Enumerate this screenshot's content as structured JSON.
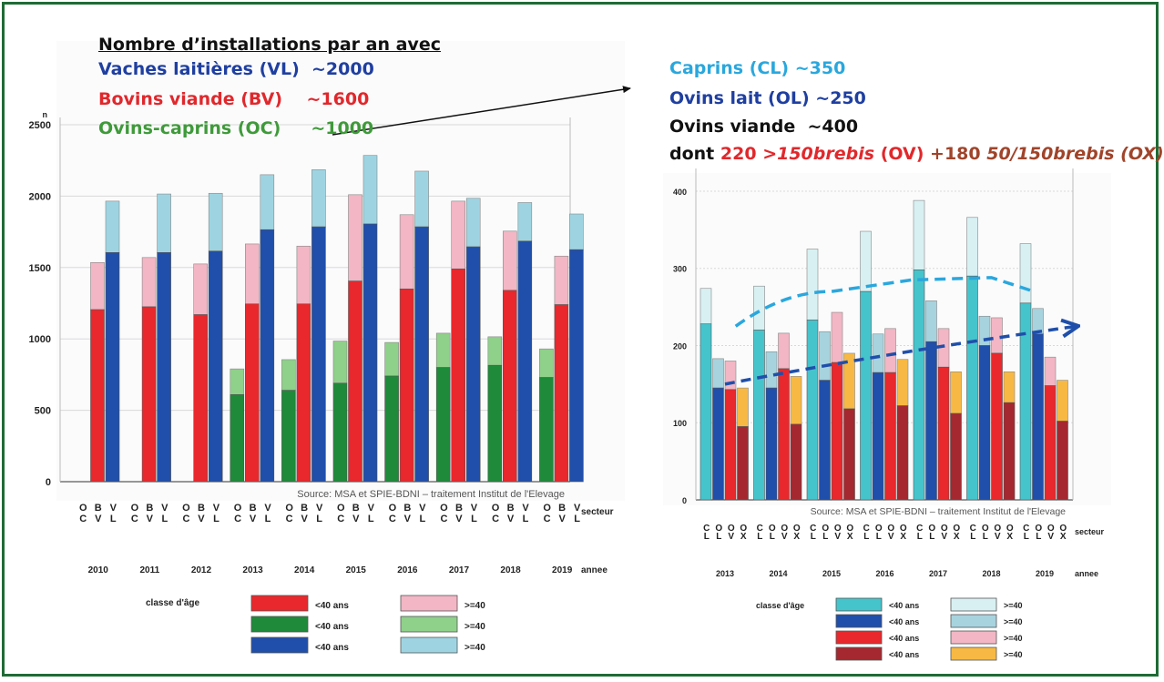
{
  "header": {
    "title": "Nombre d’installations par an avec",
    "lines": [
      {
        "label": "Vaches laitières (VL)",
        "value": "~2000",
        "color": "#1f3fa0"
      },
      {
        "label": "Bovins viande (BV)",
        "value": "~1600",
        "color": "#e0282c"
      },
      {
        "label": "Ovins-caprins (OC)",
        "value": "~1000",
        "color": "#3f9a3a"
      }
    ],
    "right_lines": [
      {
        "label": "Caprins  (CL)",
        "value": "~350",
        "color": "#2aa7dd"
      },
      {
        "label": "Ovins lait (OL)",
        "value": "~250",
        "color": "#1f3fa0"
      },
      {
        "label": "Ovins viande",
        "value": "~400",
        "color": "#111111"
      }
    ],
    "dont": {
      "prefix": "dont",
      "part1_num": "220",
      "part1_desc": ">150brebis",
      "part1_code": "(OV)",
      "plus": "+180",
      "part2_desc": "50/150brebis (OX)",
      "color_red": "#e0282c",
      "color_brown": "#a0442a"
    }
  },
  "chart_data": [
    {
      "type": "bar",
      "stacked": true,
      "y_unit": "n",
      "ylim": [
        0,
        2500
      ],
      "yticks": [
        0,
        500,
        1000,
        1500,
        2000,
        2500
      ],
      "grid": true,
      "source": "Source: MSA et SPIE-BDNI – traitement Institut de l'Elevage",
      "categories": [
        "2010",
        "2011",
        "2012",
        "2013",
        "2014",
        "2015",
        "2016",
        "2017",
        "2018",
        "2019"
      ],
      "x_secteur_label": "secteur",
      "x_annee_label": "annee",
      "secteurs": [
        {
          "code": "OC",
          "letters": [
            "O",
            "C"
          ]
        },
        {
          "code": "BV",
          "letters": [
            "B",
            "V"
          ]
        },
        {
          "code": "VL",
          "letters": [
            "V",
            "L"
          ]
        }
      ],
      "series": [
        {
          "secteur": "OC",
          "under40": [
            null,
            null,
            null,
            610,
            640,
            690,
            740,
            800,
            815,
            730
          ],
          "total": [
            null,
            null,
            null,
            790,
            855,
            985,
            975,
            1040,
            1015,
            930
          ],
          "color_under40": "#1e8a3a",
          "color_over40": "#8fd08a"
        },
        {
          "secteur": "BV",
          "under40": [
            1205,
            1225,
            1170,
            1245,
            1245,
            1405,
            1350,
            1490,
            1340,
            1240
          ],
          "total": [
            1535,
            1570,
            1525,
            1665,
            1650,
            2010,
            1870,
            1965,
            1755,
            1580
          ],
          "color_under40": "#e8282c",
          "color_over40": "#f2b6c4"
        },
        {
          "secteur": "VL",
          "under40": [
            1605,
            1605,
            1615,
            1765,
            1785,
            1805,
            1785,
            1645,
            1685,
            1625
          ],
          "total": [
            1965,
            2015,
            2020,
            2150,
            2185,
            2285,
            2175,
            1985,
            1955,
            1875
          ],
          "color_under40": "#1f4faa",
          "color_over40": "#9ed4e2"
        }
      ],
      "legend": {
        "title": "classe d'âge",
        "items": [
          {
            "label": "<40 ans",
            "color": "#e8282c"
          },
          {
            "label": ">=40",
            "color": "#f2b6c4"
          },
          {
            "label": "<40 ans",
            "color": "#1e8a3a"
          },
          {
            "label": ">=40",
            "color": "#8fd08a"
          },
          {
            "label": "<40 ans",
            "color": "#1f4faa"
          },
          {
            "label": ">=40",
            "color": "#9ed4e2"
          }
        ]
      }
    },
    {
      "type": "bar",
      "stacked": true,
      "ylim": [
        0,
        420
      ],
      "yticks": [
        0,
        100,
        200,
        300,
        400
      ],
      "grid": true,
      "source": "Source: MSA et SPIE-BDNI – traitement Institut de l'Elevage",
      "categories": [
        "2013",
        "2014",
        "2015",
        "2016",
        "2017",
        "2018",
        "2019"
      ],
      "x_secteur_label": "secteur",
      "x_annee_label": "annee",
      "secteurs": [
        {
          "code": "CL",
          "letters": [
            "C",
            "L"
          ]
        },
        {
          "code": "OL",
          "letters": [
            "O",
            "L"
          ]
        },
        {
          "code": "OV",
          "letters": [
            "O",
            "V"
          ]
        },
        {
          "code": "OX",
          "letters": [
            "O",
            "X"
          ]
        }
      ],
      "series": [
        {
          "secteur": "CL",
          "under40": [
            228,
            220,
            233,
            270,
            298,
            290,
            255
          ],
          "total": [
            274,
            277,
            325,
            348,
            388,
            366,
            332
          ],
          "color_under40": "#45c4cc",
          "color_over40": "#d8f0f2"
        },
        {
          "secteur": "OL",
          "under40": [
            145,
            145,
            155,
            165,
            205,
            200,
            215
          ],
          "total": [
            183,
            192,
            218,
            215,
            258,
            238,
            248
          ],
          "color_under40": "#1f4faa",
          "color_over40": "#a7d3de"
        },
        {
          "secteur": "OV",
          "under40": [
            143,
            170,
            178,
            165,
            172,
            190,
            148
          ],
          "total": [
            180,
            216,
            243,
            222,
            222,
            236,
            185
          ],
          "color_under40": "#e8282c",
          "color_over40": "#f2b6c4"
        },
        {
          "secteur": "OX",
          "under40": [
            95,
            98,
            118,
            122,
            112,
            126,
            102
          ],
          "total": [
            145,
            160,
            190,
            182,
            166,
            166,
            155
          ],
          "color_under40": "#a52830",
          "color_over40": "#f7b943"
        }
      ],
      "trend_CL": [
        [
          2013.2,
          225
        ],
        [
          2015,
          270
        ],
        [
          2016.5,
          285
        ],
        [
          2018,
          288
        ],
        [
          2018.8,
          270
        ]
      ],
      "trend_OL": [
        [
          2013,
          150
        ],
        [
          2016,
          190
        ],
        [
          2019.6,
          225
        ]
      ],
      "trend_CL_color": "#2aa7dd",
      "trend_OL_color": "#1f4faa",
      "legend": {
        "title": "classe d'âge",
        "items": [
          {
            "label": "<40 ans",
            "color": "#45c4cc"
          },
          {
            "label": ">=40",
            "color": "#d8f0f2"
          },
          {
            "label": "<40 ans",
            "color": "#1f4faa"
          },
          {
            "label": ">=40",
            "color": "#a7d3de"
          },
          {
            "label": "<40 ans",
            "color": "#e8282c"
          },
          {
            "label": ">=40",
            "color": "#f2b6c4"
          },
          {
            "label": "<40 ans",
            "color": "#a52830"
          },
          {
            "label": ">=40",
            "color": "#f7b943"
          }
        ]
      }
    }
  ]
}
